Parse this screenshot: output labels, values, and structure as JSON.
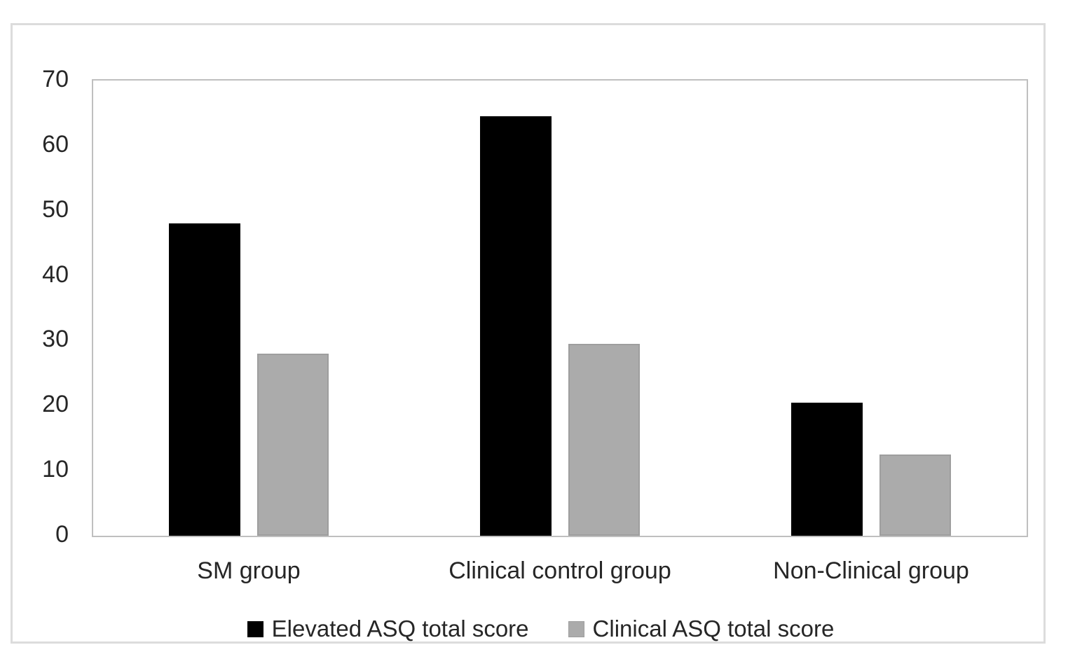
{
  "chart_data": {
    "type": "bar",
    "categories": [
      "SM group",
      "Clinical control group",
      "Non-Clinical group"
    ],
    "series": [
      {
        "name": "Elevated ASQ total score",
        "color": "#000000",
        "border_color": "#000000",
        "values": [
          48,
          64.5,
          20.5
        ]
      },
      {
        "name": "Clinical ASQ total score",
        "color": "#ababab",
        "border_color": "#9e9e9e",
        "values": [
          28,
          29.5,
          12.5
        ]
      }
    ],
    "title": "",
    "xlabel": "",
    "ylabel": "",
    "ylim": [
      0,
      70
    ],
    "yticks": [
      0,
      10,
      20,
      30,
      40,
      50,
      60,
      70
    ],
    "grid": false,
    "legend_position": "bottom"
  },
  "colors": {
    "background": "#ffffff",
    "figure_border": "#dcdcdc",
    "plot_border": "#bfbfbf",
    "text": "#262626"
  }
}
